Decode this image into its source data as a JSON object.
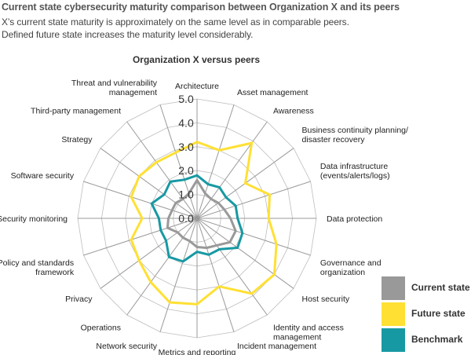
{
  "header": {
    "title": "Current state cybersecurity maturity comparison between Organization X and its peers",
    "subtitle_line1": "X’s current state maturity is approximately on the same level as in comparable peers.",
    "subtitle_line2": "Defined future state increases the maturity level considerably."
  },
  "chart_data": {
    "type": "radar",
    "title": "Organization X versus peers",
    "axes": [
      [
        "Architecture"
      ],
      [
        "Asset management"
      ],
      [
        "Awareness"
      ],
      [
        "Business continuity planning/",
        "disaster recovery"
      ],
      [
        "Data infrastructure",
        "(events/alerts/logs)"
      ],
      [
        "Data protection"
      ],
      [
        "Governance and",
        "organization"
      ],
      [
        "Host security"
      ],
      [
        "Identity and access",
        "management"
      ],
      [
        "Incident management"
      ],
      [
        "Metrics and reporting"
      ],
      [
        "Network security"
      ],
      [
        "Operations"
      ],
      [
        "Privacy"
      ],
      [
        "Policy and standards",
        "framework"
      ],
      [
        "Security monitoring"
      ],
      [
        "Software security"
      ],
      [
        "Strategy"
      ],
      [
        "Third-party management"
      ],
      [
        "Threat and vulnerability",
        "management"
      ]
    ],
    "rlim": [
      0,
      5
    ],
    "ticks": [
      "0.0",
      "1.0",
      "2.0",
      "3.0",
      "4.0",
      "5.0"
    ],
    "series": [
      {
        "name": "Current state",
        "color": "#999999",
        "values": [
          1.6,
          1.1,
          1.0,
          1.1,
          1.2,
          1.4,
          1.7,
          1.7,
          1.4,
          1.3,
          1.2,
          1.0,
          1.0,
          1.0,
          1.3,
          1.2,
          1.1,
          1.1,
          1.0,
          1.1
        ]
      },
      {
        "name": "Future state",
        "color": "#ffe033",
        "values": [
          3.2,
          3.0,
          3.9,
          2.5,
          3.2,
          3.0,
          3.5,
          4.0,
          3.9,
          3.0,
          3.6,
          3.7,
          3.3,
          3.0,
          2.9,
          2.3,
          2.9,
          3.0,
          2.9,
          2.9
        ]
      },
      {
        "name": "Benchmark",
        "color": "#1799a3",
        "values": [
          1.8,
          1.5,
          1.6,
          1.5,
          1.7,
          1.7,
          2.0,
          2.1,
          1.6,
          1.6,
          1.4,
          1.9,
          2.0,
          1.6,
          1.6,
          1.6,
          2.0,
          1.7,
          1.9,
          1.7
        ]
      }
    ]
  }
}
